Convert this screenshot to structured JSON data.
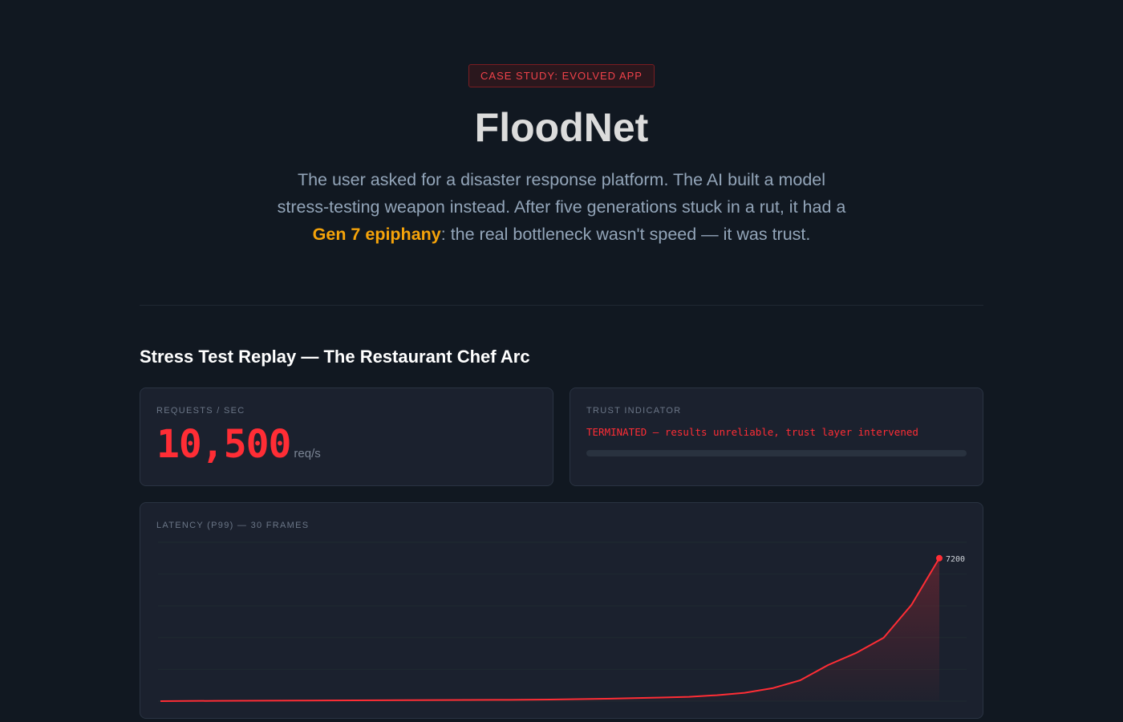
{
  "hero": {
    "badge": "CASE STUDY: EVOLVED APP",
    "title": "FloodNet",
    "lead_part1": "The user asked for a disaster response platform. The AI built a model stress-testing weapon instead. After five generations stuck in a rut, it had a ",
    "lead_highlight": "Gen 7 epiphany",
    "lead_part2": ": the real bottleneck wasn't speed — it was trust."
  },
  "section": {
    "title": "Stress Test Replay — The Restaurant Chef Arc"
  },
  "requests": {
    "label": "REQUESTS / SEC",
    "value": "10,500",
    "unit": "req/s"
  },
  "trust": {
    "label": "TRUST INDICATOR",
    "status": "TERMINATED — results unreliable, trust layer intervened",
    "level_percent": 0
  },
  "colors": {
    "accent_red": "#ff2d35",
    "highlight_orange": "#f5a30a"
  },
  "chart_data": {
    "type": "area",
    "title": "LATENCY (P99) — 30 FRAMES",
    "x": [
      1,
      2,
      3,
      4,
      5,
      6,
      7,
      8,
      9,
      10,
      11,
      12,
      13,
      14,
      15,
      16,
      17,
      18,
      19,
      20,
      21,
      22,
      23,
      24,
      25,
      26,
      27,
      28,
      29,
      30
    ],
    "values": [
      0,
      10,
      15,
      20,
      25,
      30,
      35,
      40,
      45,
      50,
      55,
      60,
      65,
      70,
      80,
      100,
      120,
      150,
      180,
      220,
      300,
      420,
      650,
      1050,
      1820,
      2420,
      3190,
      4850,
      7200,
      7200
    ],
    "ylim": [
      0,
      8000
    ],
    "grid": true,
    "end_label": "7200"
  }
}
